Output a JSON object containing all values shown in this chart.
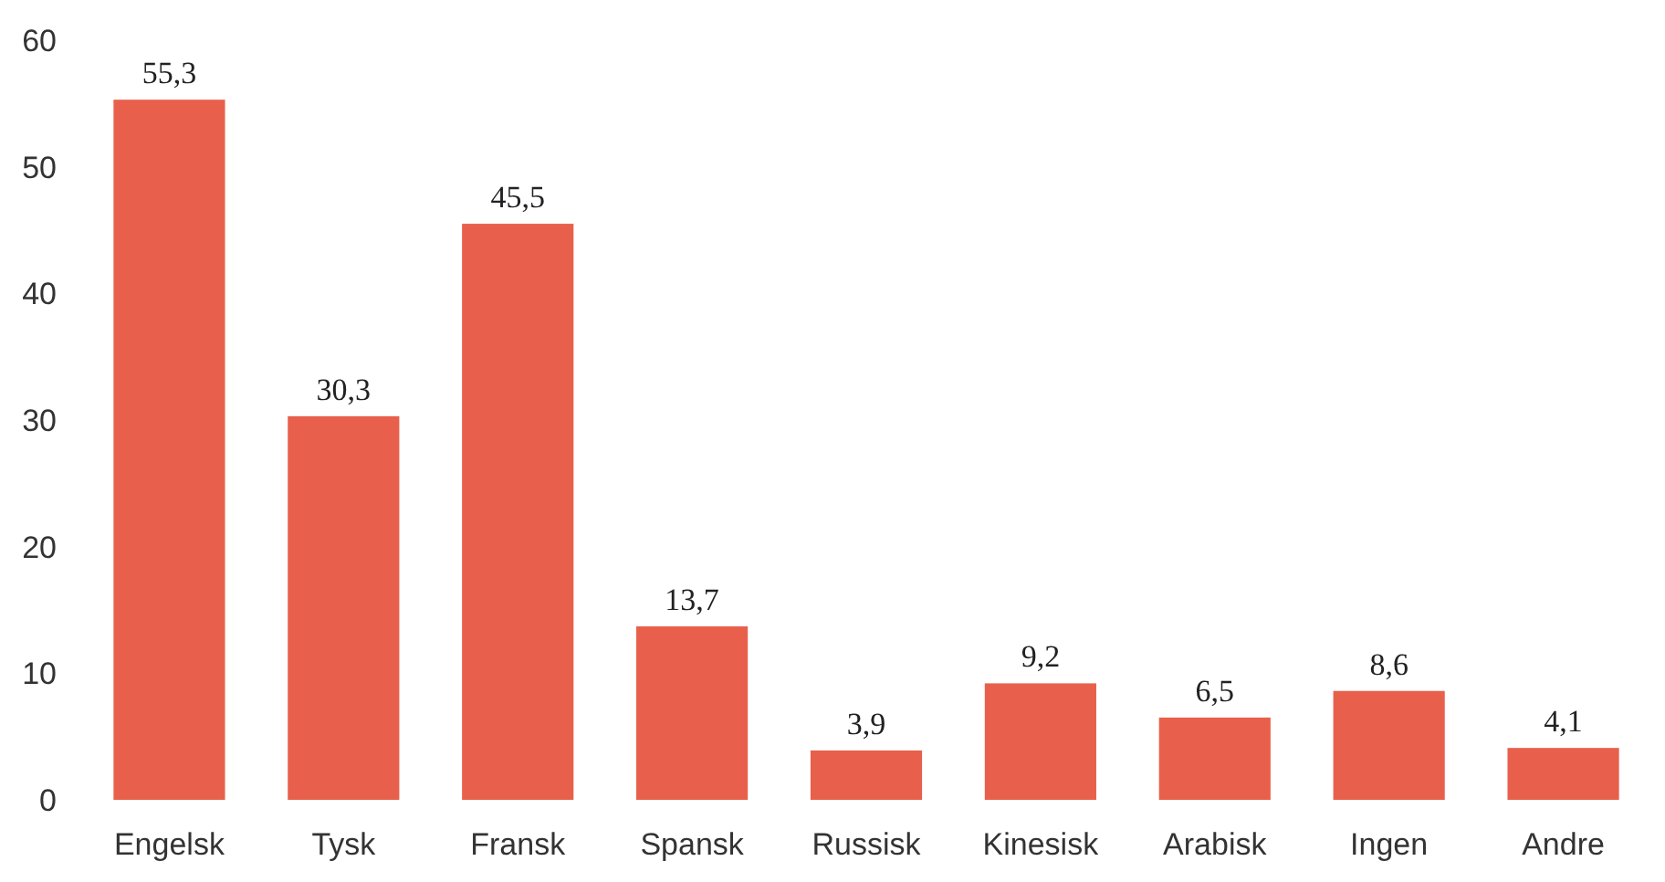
{
  "chart_data": {
    "type": "bar",
    "categories": [
      "Engelsk",
      "Tysk",
      "Fransk",
      "Spansk",
      "Russisk",
      "Kinesisk",
      "Arabisk",
      "Ingen",
      "Andre"
    ],
    "values": [
      55.3,
      30.3,
      45.5,
      13.7,
      3.9,
      9.2,
      6.5,
      8.6,
      4.1
    ],
    "value_labels": [
      "55,3",
      "30,3",
      "45,5",
      "13,7",
      "3,9",
      "9,2",
      "6,5",
      "8,6",
      "4,1"
    ],
    "color": "#e8604c",
    "ylim": [
      0,
      60
    ],
    "yticks": [
      0,
      10,
      20,
      30,
      40,
      50,
      60
    ],
    "grid": false
  }
}
